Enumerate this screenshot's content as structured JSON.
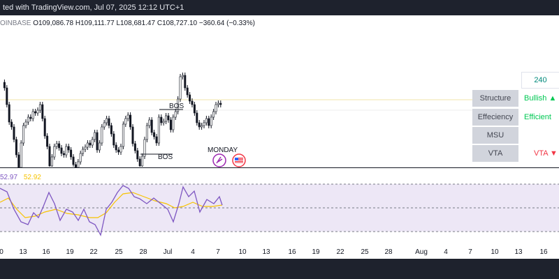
{
  "header": {
    "title": "ted with TradingView.com, Jul 07, 2025 12:12 UTC+1"
  },
  "ohlc": {
    "ticker": "OINBASE",
    "open": "O109,086.78",
    "high": "H109,111.77",
    "low": "L108,681.47",
    "close": "C108,727.10",
    "change": "−360.64 (−0.33%)"
  },
  "rsi": {
    "value1": "52.97",
    "value2": "52.92"
  },
  "labels": {
    "bos1": "BOS",
    "bos2": "BOS",
    "weekday": "MONDAY"
  },
  "table": {
    "timeframe": "240",
    "rows": [
      {
        "label": "Structure",
        "value": "Bullish ▲",
        "color": "#00c853"
      },
      {
        "label": "Effeciency",
        "value": "Efficient",
        "color": "#00c853"
      },
      {
        "label": "MSU",
        "value": "",
        "color": "#131722"
      },
      {
        "label": "VTA",
        "value": "VTA ▼",
        "color": "#f23645"
      }
    ]
  },
  "colors": {
    "rsi_line": "#7e57c2",
    "rsi_ma": "#f7c300",
    "rsi_bg": "#ede7f6",
    "candle": "#131722"
  },
  "chart_data": {
    "type": "candlestick",
    "series": [
      {
        "name": "",
        "values": [
          [
            0,
            0,
            0,
            0
          ]
        ]
      }
    ],
    "x_tick_labels": [
      "0",
      "13",
      "16",
      "19",
      "22",
      "25",
      "28",
      "Jul",
      "4",
      "7",
      "10",
      "13",
      "16",
      "19",
      "22",
      "25",
      "28",
      "Aug",
      "4",
      "7",
      "10",
      "13",
      "16"
    ],
    "rsi_panel": {
      "value1": 52.97,
      "value2": 52.92
    }
  }
}
